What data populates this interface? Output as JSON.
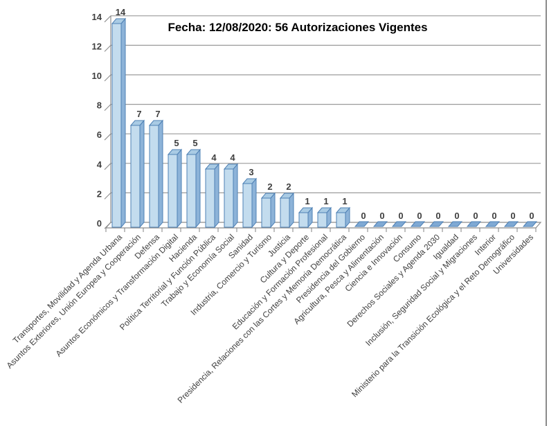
{
  "chart_data": {
    "type": "bar",
    "title": "Fecha: 12/08/2020: 56 Autorizaciones Vigentes",
    "categories": [
      "Transportes, Movilidad y Agenda Urbana",
      "Asuntos Exteriores, Unión Europea y Cooperación",
      "Defensa",
      "Asuntos Económicos y Transformación Digital",
      "Hacienda",
      "Política Territorial y Función Pública",
      "Trabajo y Economía Social",
      "Sanidad",
      "Industria, Comercio y Turismo",
      "Justicia",
      "Cultura y Deporte",
      "Educación y Formación Profesional",
      "Presidencia, Relaciones con las Cortes y Memoria Democrática",
      "Presidencia del Gobierno",
      "Agricultura, Pesca y Alimentación",
      "Ciencia e Innovación",
      "Consumo",
      "Derechos Sociales y Agenda 2030",
      "Igualdad",
      "Inclusión, Seguridad Social y Migraciones",
      "Interior",
      "Ministerio para la Transición Ecológica y el Reto Demográfico",
      "Universidades"
    ],
    "values": [
      14,
      7,
      7,
      5,
      5,
      4,
      4,
      3,
      2,
      2,
      1,
      1,
      1,
      0,
      0,
      0,
      0,
      0,
      0,
      0,
      0,
      0,
      0
    ],
    "total": 56,
    "xlabel": "",
    "ylabel": "",
    "ylim": [
      0,
      14
    ],
    "ytick_step": 2,
    "ytick_labels": [
      "0",
      "2",
      "4",
      "6",
      "8",
      "10",
      "12",
      "14"
    ],
    "grid": true,
    "legend": "none",
    "style": "3d-column",
    "data_labels_shown": true,
    "colors": {
      "bar_front": "#c3dcee",
      "bar_side": "#8db3d8",
      "bar_top": "#a9cbe4",
      "bar_stroke": "#4e80b4",
      "zero_bar_fill": "#7fa9d4",
      "gridline": "#9a9a9a",
      "axis": "#8c8c8c",
      "tick_label": "#3f3f3f",
      "title_color": "#000000"
    }
  }
}
